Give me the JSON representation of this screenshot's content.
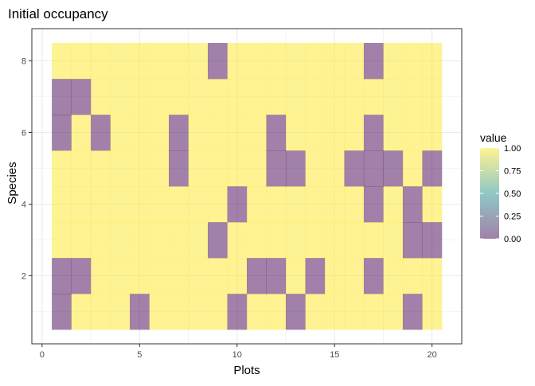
{
  "chart_data": {
    "type": "heatmap",
    "title": "Initial occupancy",
    "xlabel": "Plots",
    "ylabel": "Species",
    "x": [
      1,
      2,
      3,
      4,
      5,
      6,
      7,
      8,
      9,
      10,
      11,
      12,
      13,
      14,
      15,
      16,
      17,
      18,
      19,
      20
    ],
    "y": [
      1,
      2,
      3,
      4,
      5,
      6,
      7,
      8
    ],
    "xlim": [
      0,
      20.5
    ],
    "ylim": [
      0.5,
      8.5
    ],
    "x_ticks": [
      0,
      5,
      10,
      15,
      20
    ],
    "y_ticks": [
      2,
      4,
      6,
      8
    ],
    "grid": true,
    "values": [
      [
        0,
        1,
        1,
        1,
        0,
        1,
        1,
        1,
        1,
        0,
        1,
        1,
        0,
        1,
        1,
        1,
        1,
        1,
        0,
        1
      ],
      [
        0,
        0,
        1,
        1,
        1,
        1,
        1,
        1,
        1,
        1,
        0,
        0,
        1,
        0,
        1,
        1,
        0,
        1,
        1,
        1
      ],
      [
        1,
        1,
        1,
        1,
        1,
        1,
        1,
        1,
        0,
        1,
        1,
        1,
        1,
        1,
        1,
        1,
        1,
        1,
        0,
        0
      ],
      [
        1,
        1,
        1,
        1,
        1,
        1,
        1,
        1,
        1,
        0,
        1,
        1,
        1,
        1,
        1,
        1,
        0,
        1,
        0,
        1
      ],
      [
        1,
        1,
        1,
        1,
        1,
        1,
        0,
        1,
        1,
        1,
        1,
        0,
        0,
        1,
        1,
        0,
        0,
        0,
        1,
        0
      ],
      [
        0,
        1,
        0,
        1,
        1,
        1,
        0,
        1,
        1,
        1,
        1,
        0,
        1,
        1,
        1,
        1,
        0,
        1,
        1,
        1
      ],
      [
        0,
        0,
        1,
        1,
        1,
        1,
        1,
        1,
        1,
        1,
        1,
        1,
        1,
        1,
        1,
        1,
        1,
        1,
        1,
        1
      ],
      [
        1,
        1,
        1,
        1,
        1,
        1,
        1,
        1,
        0,
        1,
        1,
        1,
        1,
        1,
        1,
        1,
        0,
        1,
        1,
        1
      ]
    ],
    "legend": {
      "title": "value",
      "placement": "right",
      "labels": [
        "1.00",
        "0.75",
        "0.50",
        "0.25",
        "0.00"
      ],
      "label_values": [
        1.0,
        0.75,
        0.5,
        0.25,
        0.0
      ]
    },
    "colors": {
      "high": "#FDE725",
      "mid": "#21918C",
      "low": "#440154",
      "tile_opacity": 0.5,
      "panel_border": "#333333",
      "grid_major": "#EBEBEB",
      "text": "#000000",
      "tick_text": "#4D4D4D"
    }
  }
}
